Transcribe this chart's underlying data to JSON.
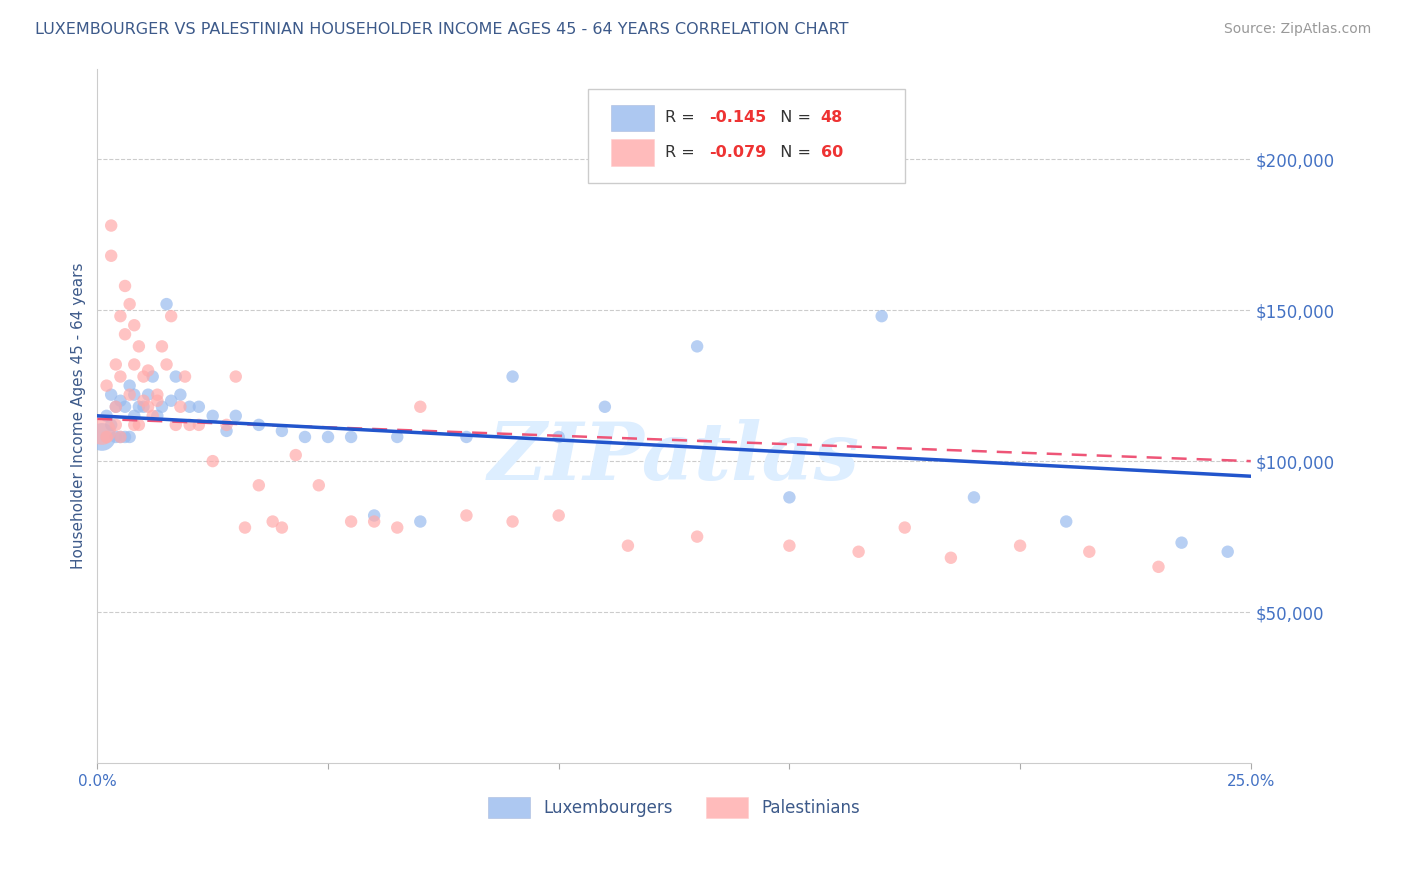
{
  "title": "LUXEMBOURGER VS PALESTINIAN HOUSEHOLDER INCOME AGES 45 - 64 YEARS CORRELATION CHART",
  "source": "Source: ZipAtlas.com",
  "ylabel": "Householder Income Ages 45 - 64 years",
  "ytick_values": [
    50000,
    100000,
    150000,
    200000
  ],
  "legend_label_blue": "Luxembourgers",
  "legend_label_pink": "Palestinians",
  "title_color": "#3d5a8a",
  "source_color": "#999999",
  "ylabel_color": "#3d5a8a",
  "ytick_color": "#4472c4",
  "xtick_color": "#4472c4",
  "blue_color": "#99bbee",
  "pink_color": "#ffaaaa",
  "trendline_blue": "#2255cc",
  "trendline_pink": "#ee5577",
  "watermark": "ZIPatlas",
  "watermark_color": "#ddeeff",
  "xlim": [
    0.0,
    0.25
  ],
  "ylim": [
    0,
    230000
  ],
  "blue_x": [
    0.001,
    0.002,
    0.003,
    0.003,
    0.004,
    0.004,
    0.005,
    0.005,
    0.006,
    0.006,
    0.007,
    0.007,
    0.008,
    0.008,
    0.009,
    0.01,
    0.011,
    0.012,
    0.013,
    0.014,
    0.015,
    0.016,
    0.017,
    0.018,
    0.02,
    0.022,
    0.025,
    0.028,
    0.03,
    0.035,
    0.04,
    0.045,
    0.05,
    0.055,
    0.06,
    0.065,
    0.07,
    0.08,
    0.09,
    0.1,
    0.11,
    0.13,
    0.15,
    0.17,
    0.19,
    0.21,
    0.235,
    0.245
  ],
  "blue_y": [
    108000,
    115000,
    122000,
    112000,
    118000,
    108000,
    120000,
    108000,
    118000,
    108000,
    125000,
    108000,
    122000,
    115000,
    118000,
    118000,
    122000,
    128000,
    115000,
    118000,
    152000,
    120000,
    128000,
    122000,
    118000,
    118000,
    115000,
    110000,
    115000,
    112000,
    110000,
    108000,
    108000,
    108000,
    82000,
    108000,
    80000,
    108000,
    128000,
    108000,
    118000,
    138000,
    88000,
    148000,
    88000,
    80000,
    73000,
    70000
  ],
  "blue_sizes": [
    400,
    80,
    80,
    80,
    80,
    80,
    80,
    80,
    80,
    80,
    80,
    80,
    80,
    80,
    80,
    80,
    80,
    80,
    80,
    80,
    80,
    80,
    80,
    80,
    80,
    80,
    80,
    80,
    80,
    80,
    80,
    80,
    80,
    80,
    80,
    80,
    80,
    80,
    80,
    80,
    80,
    80,
    80,
    80,
    80,
    80,
    80,
    80
  ],
  "pink_x": [
    0.001,
    0.002,
    0.002,
    0.003,
    0.003,
    0.004,
    0.004,
    0.004,
    0.005,
    0.005,
    0.005,
    0.006,
    0.006,
    0.007,
    0.007,
    0.008,
    0.008,
    0.008,
    0.009,
    0.009,
    0.01,
    0.01,
    0.011,
    0.011,
    0.012,
    0.013,
    0.013,
    0.014,
    0.015,
    0.016,
    0.017,
    0.018,
    0.019,
    0.02,
    0.022,
    0.025,
    0.028,
    0.03,
    0.032,
    0.035,
    0.038,
    0.04,
    0.043,
    0.048,
    0.055,
    0.06,
    0.065,
    0.07,
    0.08,
    0.09,
    0.1,
    0.115,
    0.13,
    0.15,
    0.165,
    0.175,
    0.185,
    0.2,
    0.215,
    0.23
  ],
  "pink_y": [
    110000,
    125000,
    108000,
    168000,
    178000,
    118000,
    132000,
    112000,
    128000,
    148000,
    108000,
    158000,
    142000,
    152000,
    122000,
    132000,
    112000,
    145000,
    112000,
    138000,
    128000,
    120000,
    130000,
    118000,
    115000,
    122000,
    120000,
    138000,
    132000,
    148000,
    112000,
    118000,
    128000,
    112000,
    112000,
    100000,
    112000,
    128000,
    78000,
    92000,
    80000,
    78000,
    102000,
    92000,
    80000,
    80000,
    78000,
    118000,
    82000,
    80000,
    82000,
    72000,
    75000,
    72000,
    70000,
    78000,
    68000,
    72000,
    70000,
    65000
  ],
  "pink_sizes": [
    400,
    80,
    80,
    80,
    80,
    80,
    80,
    80,
    80,
    80,
    80,
    80,
    80,
    80,
    80,
    80,
    80,
    80,
    80,
    80,
    80,
    80,
    80,
    80,
    80,
    80,
    80,
    80,
    80,
    80,
    80,
    80,
    80,
    80,
    80,
    80,
    80,
    80,
    80,
    80,
    80,
    80,
    80,
    80,
    80,
    80,
    80,
    80,
    80,
    80,
    80,
    80,
    80,
    80,
    80,
    80,
    80,
    80,
    80,
    80
  ]
}
